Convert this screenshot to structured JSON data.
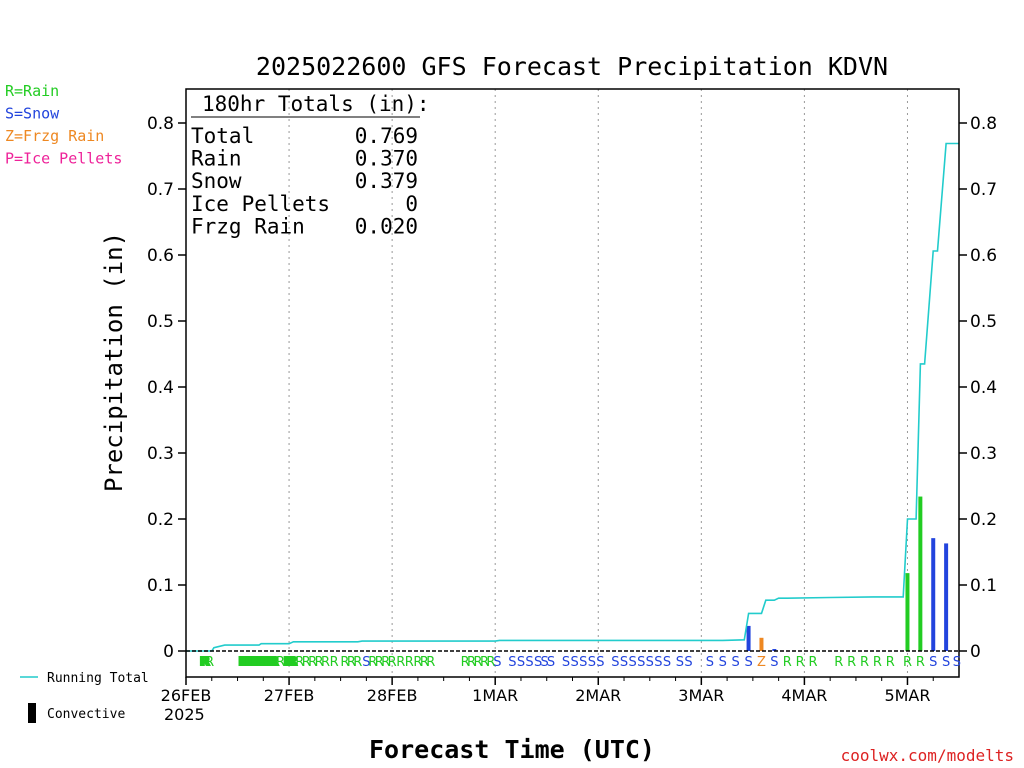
{
  "chart_data": {
    "type": "bar",
    "title": "2025022600 GFS Forecast Precipitation KDVN",
    "ylabel": "Precipitation (in)",
    "xlabel": "Forecast Time (UTC)",
    "ylim": [
      -0.04,
      0.86
    ],
    "xlim_hours": [
      0,
      180
    ],
    "start_label": "26FEB",
    "start_year": "2025",
    "x_ticks": [
      {
        "hour": 0,
        "label": "26FEB"
      },
      {
        "hour": 24,
        "label": "27FEB"
      },
      {
        "hour": 48,
        "label": "28FEB"
      },
      {
        "hour": 72,
        "label": "1MAR"
      },
      {
        "hour": 96,
        "label": "2MAR"
      },
      {
        "hour": 120,
        "label": "3MAR"
      },
      {
        "hour": 144,
        "label": "4MAR"
      },
      {
        "hour": 168,
        "label": "5MAR"
      }
    ],
    "y_ticks": [
      {
        "value": 0,
        "label": "0"
      },
      {
        "value": 0.1,
        "label": "0.1"
      },
      {
        "value": 0.2,
        "label": "0.2"
      },
      {
        "value": 0.3,
        "label": "0.3"
      },
      {
        "value": 0.4,
        "label": "0.4"
      },
      {
        "value": 0.5,
        "label": "0.5"
      },
      {
        "value": 0.6,
        "label": "0.6"
      },
      {
        "value": 0.7,
        "label": "0.7"
      },
      {
        "value": 0.8,
        "label": "0.8"
      }
    ],
    "grid": "vertical dotted at day boundaries",
    "totals_box": {
      "header": "180hr Totals (in):",
      "rows": [
        {
          "label": "Total",
          "value": "0.769"
        },
        {
          "label": "Rain",
          "value": "0.370"
        },
        {
          "label": "Snow",
          "value": "0.379"
        },
        {
          "label": "Ice Pellets",
          "value": "0"
        },
        {
          "label": "Frzg Rain",
          "value": "0.020"
        }
      ]
    },
    "legend_types": [
      {
        "text": "R=Rain",
        "color": "#22cc22"
      },
      {
        "text": "S=Snow",
        "color": "#2244dd"
      },
      {
        "text": "Z=Frzg Rain",
        "color": "#ee8822"
      },
      {
        "text": "P=Ice Pellets",
        "color": "#ee2299"
      }
    ],
    "legend_bottom": [
      {
        "text": "Running Total",
        "symbol": "line",
        "color": "#22cccc"
      },
      {
        "text": "Convective",
        "symbol": "bar",
        "color": "#000000"
      }
    ],
    "bars": [
      {
        "hour": 131,
        "value": 0.038,
        "type": "S"
      },
      {
        "hour": 134,
        "value": 0.02,
        "type": "Z"
      },
      {
        "hour": 137,
        "value": 0.003,
        "type": "S"
      },
      {
        "hour": 168,
        "value": 0.118,
        "type": "R"
      },
      {
        "hour": 171,
        "value": 0.234,
        "type": "R"
      },
      {
        "hour": 174,
        "value": 0.171,
        "type": "S"
      },
      {
        "hour": 177,
        "value": 0.163,
        "type": "S"
      }
    ],
    "running_total": {
      "hours": [
        0,
        6,
        6.5,
        9,
        17,
        17.5,
        24,
        25,
        40,
        41,
        48,
        72,
        73,
        96,
        120,
        125,
        130,
        131,
        134,
        135,
        137,
        138,
        140,
        150,
        160,
        167,
        168,
        170,
        171,
        172,
        174,
        175,
        177,
        178,
        180
      ],
      "values": [
        0,
        0,
        0.005,
        0.009,
        0.009,
        0.011,
        0.011,
        0.014,
        0.014,
        0.015,
        0.015,
        0.015,
        0.016,
        0.016,
        0.016,
        0.016,
        0.017,
        0.057,
        0.057,
        0.077,
        0.077,
        0.08,
        0.08,
        0.081,
        0.082,
        0.082,
        0.2,
        0.2,
        0.435,
        0.435,
        0.606,
        0.606,
        0.769,
        0.769,
        0.769
      ]
    },
    "ptype_track": [
      {
        "hour": 4,
        "type": "R",
        "run": 5
      },
      {
        "hour": 5.5,
        "type": "R"
      },
      {
        "hour": 13,
        "type": "R",
        "run": 7
      },
      {
        "hour": 14.5,
        "type": "R",
        "run": 10
      },
      {
        "hour": 16,
        "type": "R",
        "run": 12
      },
      {
        "hour": 17.5,
        "type": "R"
      },
      {
        "hour": 19,
        "type": "R",
        "run": 10
      },
      {
        "hour": 20.5,
        "type": "R"
      },
      {
        "hour": 22,
        "type": "R"
      },
      {
        "hour": 23.5,
        "type": "R",
        "run": 9
      },
      {
        "hour": 25,
        "type": "R"
      },
      {
        "hour": 26.5,
        "type": "R"
      },
      {
        "hour": 28,
        "type": "R"
      },
      {
        "hour": 29.5,
        "type": "R"
      },
      {
        "hour": 31,
        "type": "R"
      },
      {
        "hour": 32.5,
        "type": "R"
      },
      {
        "hour": 34.5,
        "type": "R"
      },
      {
        "hour": 37,
        "type": "R"
      },
      {
        "hour": 38.5,
        "type": "R"
      },
      {
        "hour": 40,
        "type": "R"
      },
      {
        "hour": 42,
        "type": "S"
      },
      {
        "hour": 43.5,
        "type": "R"
      },
      {
        "hour": 45,
        "type": "R"
      },
      {
        "hour": 46.5,
        "type": "R"
      },
      {
        "hour": 48,
        "type": "R"
      },
      {
        "hour": 50,
        "type": "R"
      },
      {
        "hour": 52,
        "type": "R"
      },
      {
        "hour": 54,
        "type": "R"
      },
      {
        "hour": 55.5,
        "type": "R"
      },
      {
        "hour": 57,
        "type": "R"
      },
      {
        "hour": 65,
        "type": "R"
      },
      {
        "hour": 66.5,
        "type": "R"
      },
      {
        "hour": 68,
        "type": "R"
      },
      {
        "hour": 69.5,
        "type": "R"
      },
      {
        "hour": 71,
        "type": "R"
      },
      {
        "hour": 72.5,
        "type": "S"
      },
      {
        "hour": 76,
        "type": "S"
      },
      {
        "hour": 78,
        "type": "S"
      },
      {
        "hour": 80,
        "type": "S"
      },
      {
        "hour": 82,
        "type": "S"
      },
      {
        "hour": 83.5,
        "type": "S"
      },
      {
        "hour": 85,
        "type": "S"
      },
      {
        "hour": 88.5,
        "type": "S"
      },
      {
        "hour": 90.5,
        "type": "S"
      },
      {
        "hour": 92.5,
        "type": "S"
      },
      {
        "hour": 94.5,
        "type": "S"
      },
      {
        "hour": 96.5,
        "type": "S"
      },
      {
        "hour": 100,
        "type": "S"
      },
      {
        "hour": 102,
        "type": "S"
      },
      {
        "hour": 104,
        "type": "S"
      },
      {
        "hour": 106,
        "type": "S"
      },
      {
        "hour": 108,
        "type": "S"
      },
      {
        "hour": 110,
        "type": "S"
      },
      {
        "hour": 112,
        "type": "S"
      },
      {
        "hour": 115,
        "type": "S"
      },
      {
        "hour": 117,
        "type": "S"
      },
      {
        "hour": 122,
        "type": "S"
      },
      {
        "hour": 125,
        "type": "S"
      },
      {
        "hour": 128,
        "type": "S"
      },
      {
        "hour": 131,
        "type": "S"
      },
      {
        "hour": 134,
        "type": "Z"
      },
      {
        "hour": 137,
        "type": "S"
      },
      {
        "hour": 140,
        "type": "R"
      },
      {
        "hour": 143,
        "type": "R"
      },
      {
        "hour": 146,
        "type": "R"
      },
      {
        "hour": 152,
        "type": "R"
      },
      {
        "hour": 155,
        "type": "R"
      },
      {
        "hour": 158,
        "type": "R"
      },
      {
        "hour": 161,
        "type": "R"
      },
      {
        "hour": 164,
        "type": "R"
      },
      {
        "hour": 168,
        "type": "R"
      },
      {
        "hour": 171,
        "type": "R"
      },
      {
        "hour": 174,
        "type": "S"
      },
      {
        "hour": 177,
        "type": "S"
      },
      {
        "hour": 179.5,
        "type": "S"
      }
    ],
    "type_colors": {
      "R": "#22cc22",
      "S": "#2244dd",
      "Z": "#ee8822",
      "P": "#ee2299",
      "running_total": "#22cccc"
    },
    "watermark": "coolwx.com/modelts"
  }
}
